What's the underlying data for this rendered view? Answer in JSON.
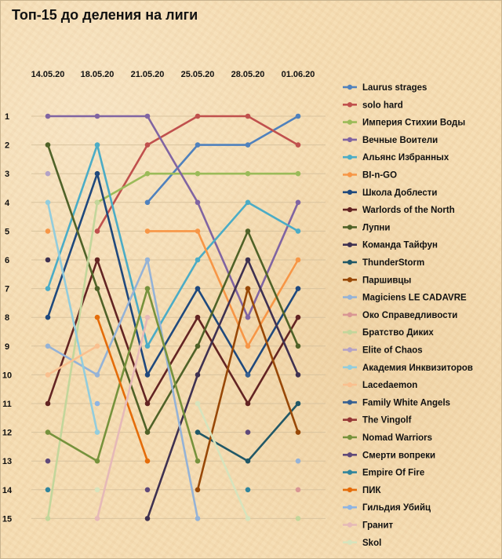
{
  "chart_data": {
    "type": "line",
    "title": "Топ-15 до деления на лиги",
    "x": [
      "14.05.20",
      "18.05.20",
      "21.05.20",
      "25.05.20",
      "28.05.20",
      "01.06.20"
    ],
    "y_ticks": [
      1,
      2,
      3,
      4,
      5,
      6,
      7,
      8,
      9,
      10,
      11,
      12,
      13,
      14,
      15
    ],
    "ylim": [
      1,
      15
    ],
    "y_inverted": true,
    "grid": "horizontal",
    "legend_position": "right",
    "series": [
      {
        "name": "Laurus strages",
        "color": "#4f81bd",
        "values": [
          null,
          null,
          4,
          2,
          2,
          1
        ]
      },
      {
        "name": "solo hard",
        "color": "#c0504d",
        "values": [
          null,
          5,
          2,
          1,
          1,
          2
        ]
      },
      {
        "name": "Империя Стихии Воды",
        "color": "#9bbb59",
        "values": [
          null,
          4,
          3,
          3,
          3,
          3
        ]
      },
      {
        "name": "Вечные Воители",
        "color": "#8064a2",
        "values": [
          1,
          1,
          1,
          4,
          8,
          4
        ]
      },
      {
        "name": "Альянс Избранных",
        "color": "#4bacc6",
        "values": [
          7,
          2,
          9,
          6,
          4,
          5
        ]
      },
      {
        "name": "BI-n-GO",
        "color": "#f79646",
        "values": [
          5,
          null,
          5,
          5,
          9,
          6
        ]
      },
      {
        "name": "Школа Доблести",
        "color": "#1f497d",
        "values": [
          8,
          3,
          10,
          7,
          10,
          7
        ]
      },
      {
        "name": "Warlords of the North",
        "color": "#632423",
        "values": [
          11,
          6,
          11,
          8,
          11,
          8
        ]
      },
      {
        "name": "Лупни",
        "color": "#4f6228",
        "values": [
          2,
          7,
          12,
          9,
          5,
          9
        ]
      },
      {
        "name": "Команда Тайфун",
        "color": "#3f3151",
        "values": [
          6,
          null,
          15,
          10,
          6,
          10
        ]
      },
      {
        "name": "ThunderStorm",
        "color": "#215867",
        "values": [
          null,
          null,
          null,
          12,
          13,
          11
        ]
      },
      {
        "name": "Паршивцы",
        "color": "#984807",
        "values": [
          null,
          null,
          null,
          14,
          7,
          12
        ]
      },
      {
        "name": "Magiciens LE CADAVRE",
        "color": "#95b3d7",
        "values": [
          9,
          10,
          6,
          15,
          null,
          13
        ]
      },
      {
        "name": "Око Справедливости",
        "color": "#d99694",
        "values": [
          null,
          null,
          null,
          null,
          null,
          14
        ]
      },
      {
        "name": "Братство Диких",
        "color": "#c3d69b",
        "values": [
          15,
          4,
          null,
          null,
          null,
          15
        ]
      },
      {
        "name": "Elite of Chaos",
        "color": "#b3a2c7",
        "values": [
          3,
          null,
          null,
          null,
          null,
          null
        ]
      },
      {
        "name": "Академия Инквизиторов",
        "color": "#93cddd",
        "values": [
          4,
          12,
          null,
          null,
          null,
          null
        ]
      },
      {
        "name": "Lacedaemon",
        "color": "#fac08f",
        "values": [
          10,
          9,
          null,
          null,
          null,
          null
        ]
      },
      {
        "name": "Family White Angels",
        "color": "#366092",
        "values": [
          null,
          null,
          null,
          null,
          10,
          null
        ]
      },
      {
        "name": "The Vingolf",
        "color": "#953735",
        "values": [
          null,
          null,
          null,
          null,
          null,
          null
        ]
      },
      {
        "name": "Nomad Warriors",
        "color": "#76923c",
        "values": [
          12,
          13,
          7,
          13,
          null,
          null
        ]
      },
      {
        "name": "Смерти вопреки",
        "color": "#5f497a",
        "values": [
          13,
          null,
          14,
          null,
          12,
          null
        ]
      },
      {
        "name": "Empire Of Fire",
        "color": "#31859c",
        "values": [
          14,
          null,
          null,
          null,
          14,
          null
        ]
      },
      {
        "name": "ПИК",
        "color": "#e46c0a",
        "values": [
          null,
          8,
          13,
          null,
          null,
          null
        ]
      },
      {
        "name": "Гильдия Убийц",
        "color": "#8eb4e3",
        "values": [
          null,
          11,
          null,
          null,
          null,
          null
        ]
      },
      {
        "name": "Гранит",
        "color": "#e6b9b8",
        "values": [
          null,
          15,
          8,
          null,
          null,
          null
        ]
      },
      {
        "name": "Skol",
        "color": "#d7e4bd",
        "values": [
          null,
          14,
          null,
          11,
          15,
          null
        ]
      }
    ]
  }
}
